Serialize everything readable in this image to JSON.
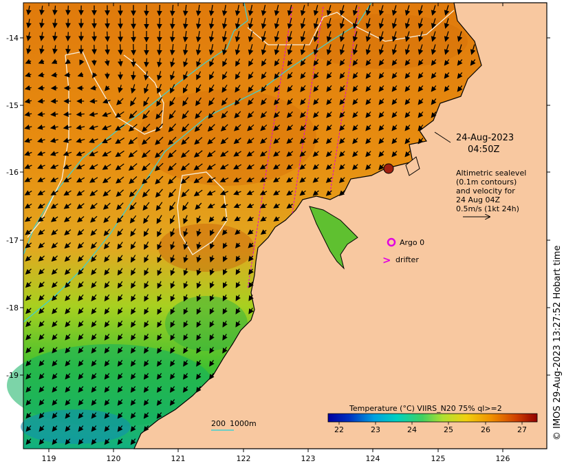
{
  "map": {
    "date": "24-Aug-2023",
    "time": "04:50Z",
    "altimetry_note": [
      "Altimetric sealevel",
      "(0.1m contours)",
      "and velocity for",
      "24 Aug 04Z",
      "0.5m/s (1kt 24h)"
    ],
    "argo_label": "Argo 0",
    "drifter_label": "drifter",
    "drifter_symbol": ">",
    "depth_scale": {
      "label_a": "200",
      "label_b": "1000m"
    },
    "credit": "© IMOS 29-Aug-2023 13:27:52 Hobart time",
    "colorbar": {
      "title": "Temperature (°C) VIIRS_N20 75% ql>=2",
      "ticks": [
        "22",
        "23",
        "24",
        "25",
        "26",
        "27"
      ],
      "colors": [
        "#0000a0",
        "#0050d0",
        "#00b0e0",
        "#10d090",
        "#70e040",
        "#d0e020",
        "#f0c000",
        "#e08000",
        "#c04000",
        "#900000"
      ]
    },
    "x_ticks": [
      "119",
      "120",
      "121",
      "122",
      "123",
      "124",
      "125",
      "126"
    ],
    "y_ticks": [
      "-14",
      "-15",
      "-16",
      "-17",
      "-18",
      "-19"
    ],
    "colors": {
      "land": "#f8c8a0",
      "coast": "#000000",
      "isobath": "#40d0d0",
      "sla_contour": "#f8f0e0",
      "track": "#e000e0",
      "warm": "#e08010",
      "cool": "#30c040"
    }
  }
}
